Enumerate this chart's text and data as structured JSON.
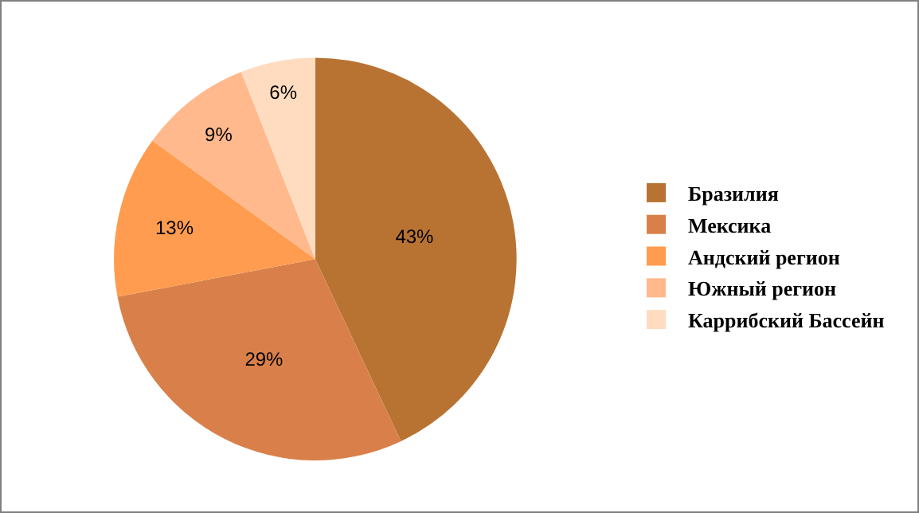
{
  "chart_data": {
    "type": "pie",
    "categories": [
      "Бразилия",
      "Мексика",
      "Андский регион",
      "Южный регион",
      "Каррибский Бассейн"
    ],
    "values": [
      43,
      29,
      13,
      9,
      6
    ],
    "value_labels": [
      "43%",
      "29%",
      "13%",
      "9%",
      "6%"
    ],
    "colors": [
      "#b87333",
      "#d9804a",
      "#ff9c4f",
      "#ffb98c",
      "#ffdcc0"
    ],
    "legend": "right"
  }
}
